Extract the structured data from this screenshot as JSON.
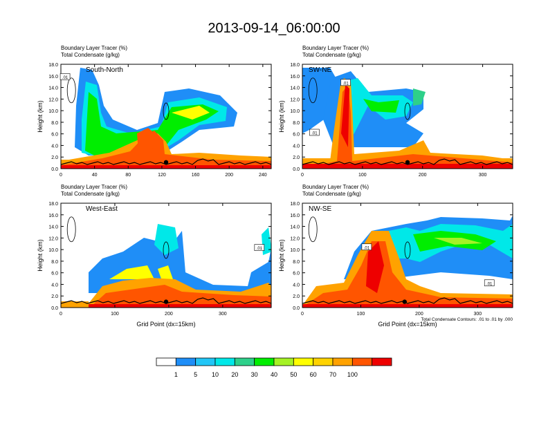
{
  "title": "2013-09-14_06:00:00",
  "note": "Total Condensate Contours: .01 to .01 by .000",
  "palette": [
    "#ffffff",
    "#1f8ef7",
    "#22c6f6",
    "#00e8e8",
    "#2ed08a",
    "#00ee00",
    "#a5f225",
    "#ffff00",
    "#ffd300",
    "#ffa200",
    "#ff5500",
    "#ee0000"
  ],
  "chart_data": [
    {
      "type": "heatmap",
      "subtitle_line1": "Boundary Layer Tracer    (%)",
      "subtitle_line2": "Total Condensate    (g/kg)",
      "label": "South-North",
      "ylabel": "Height (km)",
      "xlabel": "",
      "xlim": [
        0,
        250
      ],
      "ylim": [
        0,
        18
      ],
      "xticks": [
        0,
        40,
        80,
        120,
        160,
        200,
        240
      ],
      "yticks": [
        0,
        2,
        4,
        6,
        8,
        10,
        12,
        14,
        16,
        18
      ],
      "ytick_labels": [
        "0.0",
        "2.0",
        "4.0",
        "6.0",
        "8.0",
        "10.0",
        "12.0",
        "14.0",
        "16.0",
        "18.0"
      ],
      "contour_labels": [
        {
          "text": ".01",
          "x": 5,
          "y": 15.8
        }
      ],
      "marker": {
        "x": 125,
        "y": 1.1
      }
    },
    {
      "type": "heatmap",
      "subtitle_line1": "Boundary Layer Tracer    (%)",
      "subtitle_line2": "Total Condensate    (g/kg)",
      "label": "SW-NE",
      "ylabel": "Height (km)",
      "xlabel": "",
      "xlim": [
        0,
        350
      ],
      "ylim": [
        0,
        18
      ],
      "xticks": [
        0,
        100,
        200,
        300
      ],
      "yticks": [
        0,
        2,
        4,
        6,
        8,
        10,
        12,
        14,
        16,
        18
      ],
      "ytick_labels": [
        "0.0",
        "2.0",
        "4.0",
        "6.0",
        "8.0",
        "10.0",
        "12.0",
        "14.0",
        "16.0",
        "18.0"
      ],
      "contour_labels": [
        {
          "text": ".01",
          "x": 20,
          "y": 6.2
        },
        {
          "text": ".01",
          "x": 72,
          "y": 14.8
        }
      ],
      "marker": {
        "x": 175,
        "y": 1.1
      }
    },
    {
      "type": "heatmap",
      "subtitle_line1": "Boundary Layer Tracer    (%)",
      "subtitle_line2": "Total Condensate    (g/kg)",
      "label": "West-East",
      "ylabel": "Height (km)",
      "xlabel": "Grid Point (dx=15km)",
      "xlim": [
        0,
        390
      ],
      "ylim": [
        0,
        18
      ],
      "xticks": [
        0,
        100,
        200,
        300
      ],
      "yticks": [
        0,
        2,
        4,
        6,
        8,
        10,
        12,
        14,
        16,
        18
      ],
      "ytick_labels": [
        "0.0",
        "2.0",
        "4.0",
        "6.0",
        "8.0",
        "10.0",
        "12.0",
        "14.0",
        "16.0",
        "18.0"
      ],
      "contour_labels": [
        {
          "text": ".01",
          "x": 368,
          "y": 10.3
        }
      ],
      "marker": {
        "x": 195,
        "y": 1.0
      }
    },
    {
      "type": "heatmap",
      "subtitle_line1": "Boundary Layer Tracer    (%)",
      "subtitle_line2": "Total Condensate    (g/kg)",
      "label": "NW-SE",
      "ylabel": "Height (km)",
      "xlabel": "Grid Point (dx=15km)",
      "xlim": [
        0,
        360
      ],
      "ylim": [
        0,
        18
      ],
      "xticks": [
        0,
        100,
        200,
        300
      ],
      "yticks": [
        0,
        2,
        4,
        6,
        8,
        10,
        12,
        14,
        16,
        18
      ],
      "ytick_labels": [
        "0.0",
        "2.0",
        "4.0",
        "6.0",
        "8.0",
        "10.0",
        "12.0",
        "14.0",
        "16.0",
        "18.0"
      ],
      "contour_labels": [
        {
          "text": ".01",
          "x": 110,
          "y": 10.4
        },
        {
          "text": ".01",
          "x": 320,
          "y": 4.2
        }
      ],
      "marker": {
        "x": 175,
        "y": 1.0
      }
    }
  ],
  "colorbar": {
    "labels": [
      "1",
      "5",
      "10",
      "20",
      "30",
      "40",
      "50",
      "60",
      "70",
      "100"
    ]
  }
}
